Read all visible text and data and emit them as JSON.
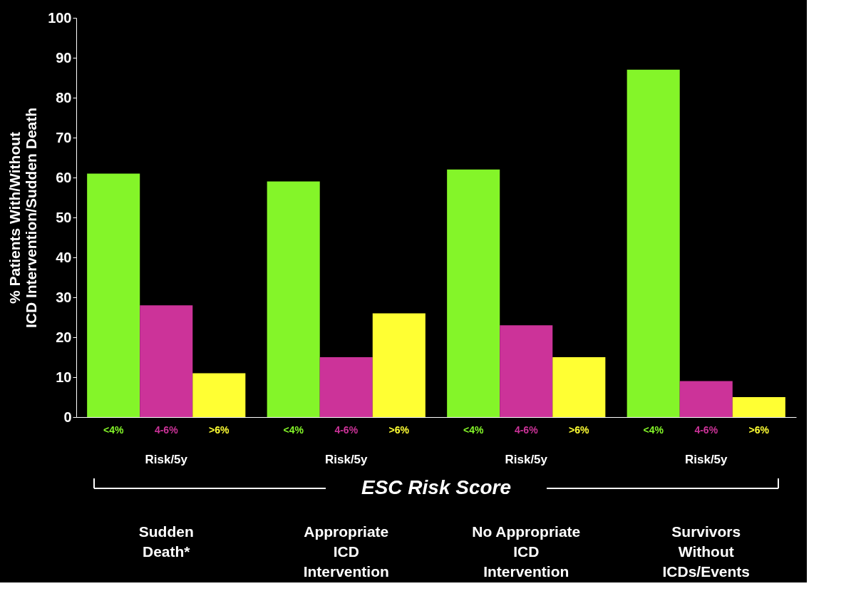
{
  "chart_data": {
    "type": "bar",
    "ylabel": "% Patients With/Without\nICD Intervention/Sudden Death",
    "categories": [
      "Sudden\nDeath*",
      "Appropriate\nICD\nIntervention",
      "No Appropriate\nICD\nIntervention",
      "Survivors\nWithout\nICDs/Events"
    ],
    "series": [
      {
        "name": "<4%",
        "color": "#84f529",
        "values": [
          61,
          59,
          62,
          87
        ]
      },
      {
        "name": "4-6%",
        "color": "#cc3399",
        "values": [
          28,
          15,
          23,
          9
        ]
      },
      {
        "name": ">6%",
        "color": "#ffff33",
        "values": [
          11,
          26,
          15,
          5
        ]
      }
    ],
    "ylim": [
      0,
      100
    ],
    "yticks": [
      0,
      10,
      20,
      30,
      40,
      50,
      60,
      70,
      80,
      90,
      100
    ],
    "grid": false,
    "annotations": [
      "Risk/5y",
      "Risk/5y",
      "Risk/5y",
      "Risk/5y",
      "ESC Risk Score"
    ]
  }
}
